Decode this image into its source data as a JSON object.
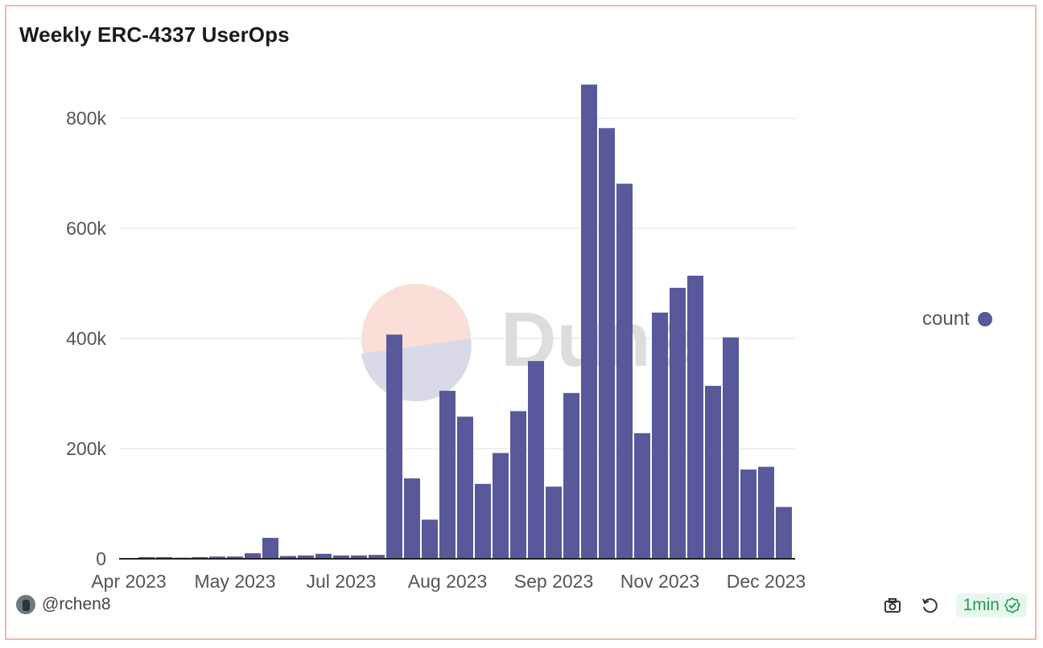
{
  "title": "Weekly ERC-4337 UserOps",
  "watermark": "Dune",
  "author": "@rchen8",
  "refresh_label": "1min",
  "icons": {
    "camera": "camera-icon",
    "refresh": "refresh-icon",
    "check": "check-circle-icon"
  },
  "colors": {
    "bar": "#58589b",
    "border": "#f2b9ab",
    "badge": "#1f9d55"
  },
  "chart_data": {
    "type": "bar",
    "title": "Weekly ERC-4337 UserOps",
    "xlabel": "",
    "ylabel": "",
    "ylim": [
      0,
      880000
    ],
    "yticks": [
      0,
      200000,
      400000,
      600000,
      800000
    ],
    "ytick_labels": [
      "0",
      "200k",
      "400k",
      "600k",
      "800k"
    ],
    "xtick_labels": [
      "Apr 2023",
      "May 2023",
      "Jul 2023",
      "Aug 2023",
      "Sep 2023",
      "Nov 2023",
      "Dec 2023"
    ],
    "grid": true,
    "legend_position": "right",
    "series": [
      {
        "name": "count",
        "values": [
          500,
          3000,
          3000,
          2000,
          3000,
          4000,
          4000,
          10000,
          38000,
          5000,
          6000,
          9000,
          6000,
          6000,
          7000,
          407000,
          146000,
          71000,
          305000,
          258000,
          136000,
          192000,
          268000,
          359000,
          131000,
          301000,
          861000,
          782000,
          681000,
          228000,
          447000,
          492000,
          514000,
          314000,
          402000,
          162000,
          167000,
          94000
        ]
      }
    ]
  }
}
